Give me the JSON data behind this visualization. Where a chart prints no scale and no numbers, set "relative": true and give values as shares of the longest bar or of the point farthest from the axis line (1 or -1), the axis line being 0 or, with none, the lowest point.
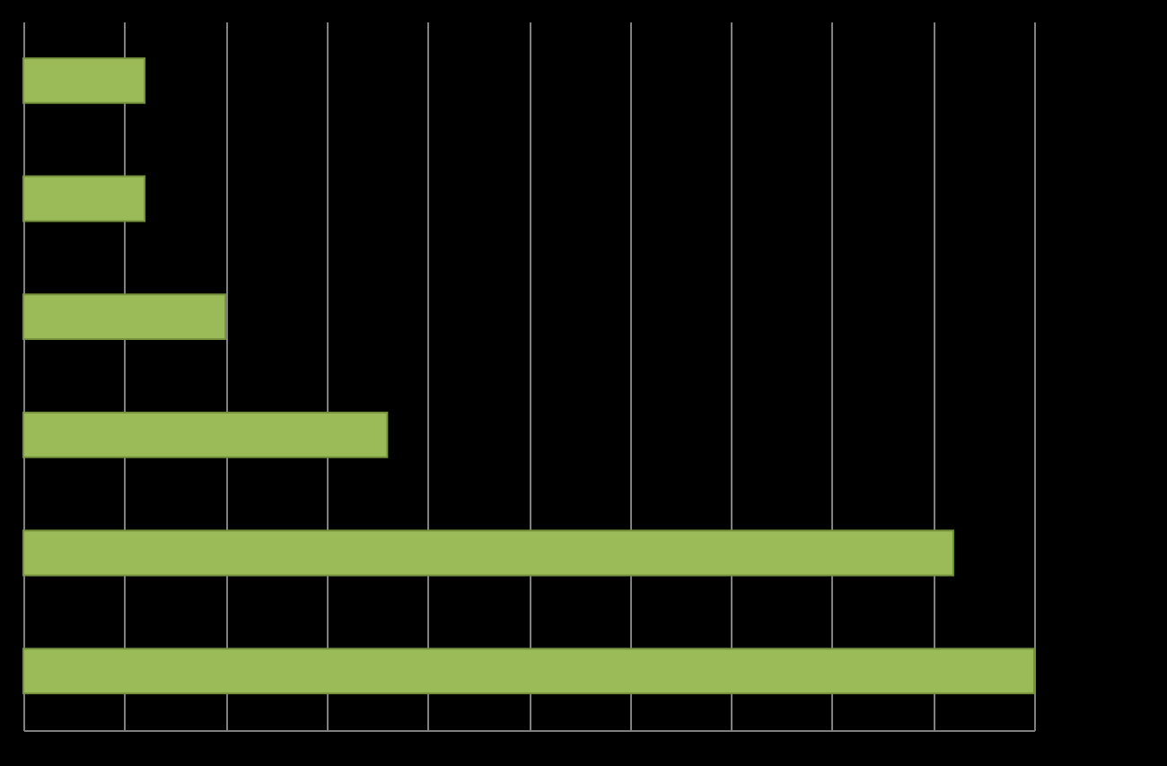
{
  "chart_data": {
    "type": "bar",
    "orientation": "horizontal",
    "relative": true,
    "categories": [
      null,
      null,
      null,
      null,
      null,
      null
    ],
    "values": [
      0.12,
      0.12,
      0.2,
      0.36,
      0.92,
      1
    ],
    "color": "#9bbb59",
    "grid": "x",
    "tick_labels": false
  }
}
